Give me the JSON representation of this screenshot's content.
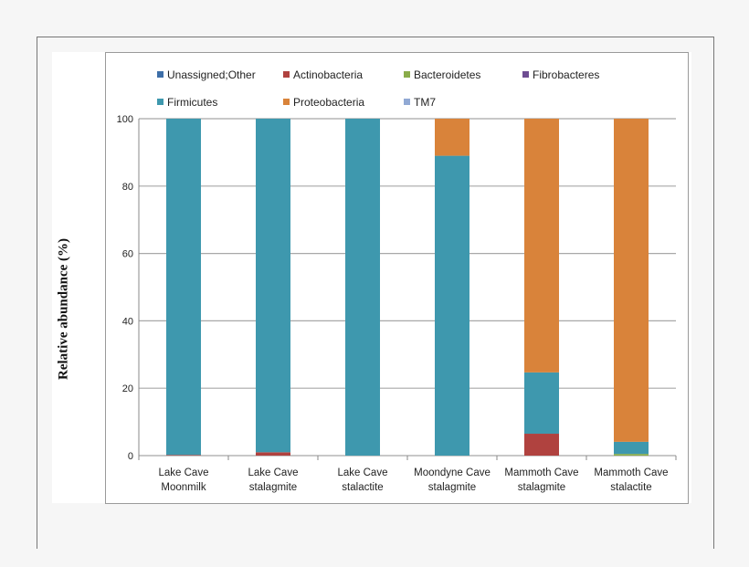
{
  "chart_data": {
    "type": "bar",
    "stacked": true,
    "ylabel": "Relative abundance (%)",
    "ylim": [
      0,
      100
    ],
    "yticks": [
      0,
      20,
      40,
      60,
      80,
      100
    ],
    "grid": true,
    "legend_position": "top",
    "categories": [
      [
        "Lake Cave",
        "Moonmilk"
      ],
      [
        "Lake Cave",
        "stalagmite"
      ],
      [
        "Lake Cave",
        "stalactite"
      ],
      [
        "Moondyne Cave",
        "stalagmite"
      ],
      [
        "Mammoth Cave",
        "stalagmite"
      ],
      [
        "Mammoth Cave",
        "stalactite"
      ]
    ],
    "series": [
      {
        "name": "Unassigned;Other",
        "color": "#3d6ea8",
        "values": [
          0,
          0,
          0,
          0,
          0,
          0
        ]
      },
      {
        "name": "Actinobacteria",
        "color": "#b0423f",
        "values": [
          0.2,
          1,
          0,
          0,
          6.5,
          0
        ]
      },
      {
        "name": "Bacteroidetes",
        "color": "#8aac4a",
        "values": [
          0,
          0,
          0,
          0,
          0,
          0.5
        ]
      },
      {
        "name": "Fibrobacteres",
        "color": "#6e4d92",
        "values": [
          0,
          0,
          0,
          0,
          0,
          0
        ]
      },
      {
        "name": "Firmicutes",
        "color": "#3e98ae",
        "values": [
          99.8,
          99,
          100,
          89,
          18.2,
          3.6
        ]
      },
      {
        "name": "Proteobacteria",
        "color": "#d9833a",
        "values": [
          0,
          0,
          0,
          11,
          75.3,
          95.9
        ]
      },
      {
        "name": "TM7",
        "color": "#91a9d4",
        "values": [
          0,
          0,
          0,
          0,
          0,
          0
        ]
      }
    ]
  }
}
